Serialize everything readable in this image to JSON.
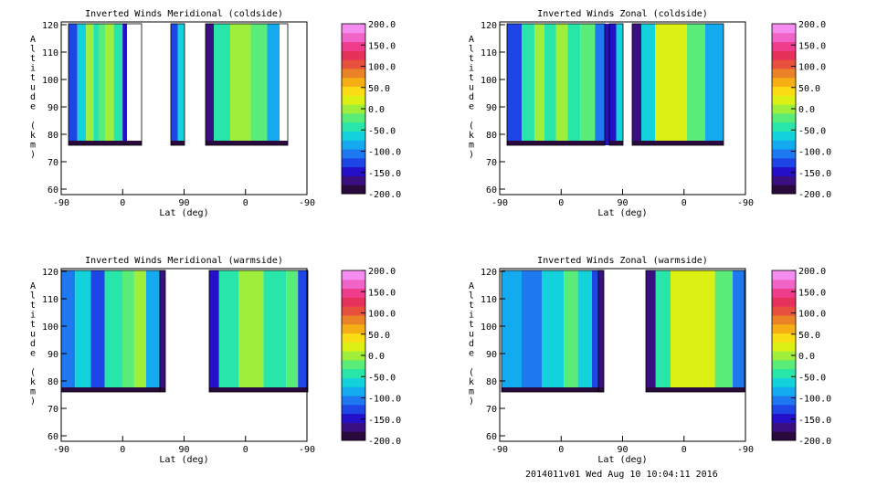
{
  "footer": "2014011v01 Wed Aug 10 10:04:11 2016",
  "colorbar": {
    "ticks": [
      "200.0",
      "150.0",
      "100.0",
      "50.0",
      "0.0",
      "-50.0",
      "-100.0",
      "-150.0",
      "-200.0"
    ],
    "colors": [
      "#2a0a3c",
      "#3a1080",
      "#2410c8",
      "#1e46e6",
      "#1e78f0",
      "#14aaf0",
      "#14d2dc",
      "#28e6aa",
      "#5aec78",
      "#a0ee3c",
      "#dcf014",
      "#fadc14",
      "#f5af14",
      "#eb8228",
      "#e6503c",
      "#e6325a",
      "#f03c8c",
      "#f064c8",
      "#f58cf0"
    ]
  },
  "chart_data": [
    {
      "type": "heatmap",
      "title": "Inverted Winds Meridional (coldside)",
      "xlabel": "Lat (deg)",
      "ylabel": "Altitude (km)",
      "x_ticks": [
        "-90",
        "0",
        "90",
        "0",
        "-90"
      ],
      "y_ticks": [
        "60",
        "70",
        "80",
        "90",
        "100",
        "110",
        "120"
      ],
      "ylim": [
        58,
        121
      ],
      "colorbar_range": [
        -200,
        200
      ],
      "regions": [
        {
          "x0": 8,
          "x1": 88,
          "bands": [
            [
              0,
              12,
              -120
            ],
            [
              12,
              24,
              -60
            ],
            [
              24,
              34,
              -10
            ],
            [
              34,
              42,
              -40
            ],
            [
              42,
              50,
              -20
            ],
            [
              50,
              62,
              -10
            ],
            [
              62,
              74,
              -40
            ],
            [
              74,
              80,
              -150
            ]
          ]
        },
        {
          "x0": 120,
          "x1": 135,
          "bands": [
            [
              0,
              50,
              -130
            ],
            [
              50,
              100,
              -60
            ]
          ]
        },
        {
          "x0": 158,
          "x1": 248,
          "bands": [
            [
              0,
              10,
              -160
            ],
            [
              10,
              30,
              -40
            ],
            [
              30,
              55,
              5
            ],
            [
              55,
              75,
              -30
            ],
            [
              75,
              90,
              -80
            ]
          ]
        }
      ]
    },
    {
      "type": "heatmap",
      "title": "Inverted Winds Zonal (coldside)",
      "xlabel": "Lat (deg)",
      "ylabel": "Altitude (km)",
      "x_ticks": [
        "-90",
        "0",
        "90",
        "0",
        "-90"
      ],
      "y_ticks": [
        "60",
        "70",
        "80",
        "90",
        "100",
        "110",
        "120"
      ],
      "ylim": [
        58,
        121
      ],
      "colorbar_range": [
        -200,
        200
      ],
      "regions": [
        {
          "x0": 8,
          "x1": 115,
          "bands": [
            [
              0,
              15,
              -120
            ],
            [
              15,
              28,
              -40
            ],
            [
              28,
              38,
              0
            ],
            [
              38,
              50,
              -40
            ],
            [
              50,
              62,
              -10
            ],
            [
              62,
              75,
              -50
            ],
            [
              75,
              90,
              -20
            ],
            [
              90,
              100,
              -100
            ],
            [
              100,
              107,
              -150
            ]
          ]
        },
        {
          "x0": 120,
          "x1": 135,
          "bands": [
            [
              0,
              50,
              -140
            ],
            [
              50,
              100,
              -70
            ]
          ]
        },
        {
          "x0": 145,
          "x1": 245,
          "bands": [
            [
              0,
              10,
              -160
            ],
            [
              10,
              25,
              -60
            ],
            [
              25,
              60,
              30
            ],
            [
              60,
              80,
              -20
            ],
            [
              80,
              100,
              -90
            ]
          ]
        }
      ]
    },
    {
      "type": "heatmap",
      "title": "Inverted Winds Meridional (warmside)",
      "xlabel": "Lat (deg)",
      "ylabel": "Altitude (km)",
      "x_ticks": [
        "-90",
        "0",
        "90",
        "0",
        "-90"
      ],
      "y_ticks": [
        "60",
        "70",
        "80",
        "90",
        "100",
        "110",
        "120"
      ],
      "ylim": [
        58,
        121
      ],
      "colorbar_range": [
        -200,
        200
      ],
      "regions": [
        {
          "x0": 0,
          "x1": 108,
          "bands": [
            [
              0,
              14,
              -100
            ],
            [
              14,
              30,
              -60
            ],
            [
              30,
              44,
              -120
            ],
            [
              44,
              62,
              -50
            ],
            [
              62,
              74,
              -20
            ],
            [
              74,
              86,
              10
            ],
            [
              86,
              100,
              -80
            ]
          ]
        },
        {
          "x0": 108,
          "x1": 114,
          "bands": [
            [
              0,
              100,
              -160
            ]
          ]
        },
        {
          "x0": 162,
          "x1": 270,
          "bands": [
            [
              0,
              10,
              -150
            ],
            [
              10,
              30,
              -40
            ],
            [
              30,
              55,
              10
            ],
            [
              55,
              78,
              -50
            ],
            [
              78,
              90,
              -20
            ],
            [
              90,
              100,
              -120
            ]
          ]
        }
      ]
    },
    {
      "type": "heatmap",
      "title": "Inverted Winds Zonal (warmside)",
      "xlabel": "Lat (deg)",
      "ylabel": "Altitude (km)",
      "x_ticks": [
        "-90",
        "0",
        "90",
        "0",
        "-90"
      ],
      "y_ticks": [
        "60",
        "70",
        "80",
        "90",
        "100",
        "110",
        "120"
      ],
      "ylim": [
        58,
        121
      ],
      "colorbar_range": [
        -200,
        200
      ],
      "regions": [
        {
          "x0": 2,
          "x1": 112,
          "bands": [
            [
              0,
              20,
              -80
            ],
            [
              20,
              40,
              -100
            ],
            [
              40,
              62,
              -60
            ],
            [
              62,
              76,
              -20
            ],
            [
              76,
              90,
              -70
            ],
            [
              90,
              100,
              -130
            ]
          ]
        },
        {
          "x0": 108,
          "x1": 114,
          "bands": [
            [
              0,
              100,
              -170
            ]
          ]
        },
        {
          "x0": 160,
          "x1": 268,
          "bands": [
            [
              0,
              10,
              -160
            ],
            [
              10,
              25,
              -50
            ],
            [
              25,
              70,
              30
            ],
            [
              70,
              88,
              -30
            ],
            [
              88,
              100,
              -110
            ]
          ]
        }
      ]
    }
  ]
}
